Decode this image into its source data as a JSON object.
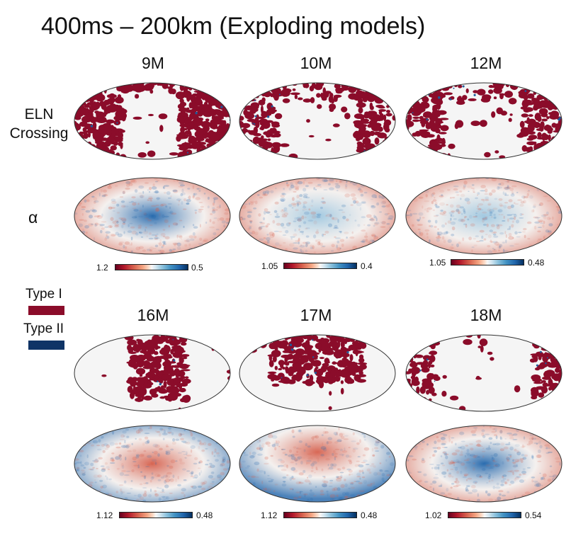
{
  "title": "400ms – 200km (Exploding models)",
  "row_labels": {
    "eln_line1": "ELN",
    "eln_line2": "Crossing",
    "alpha": "α"
  },
  "legend": {
    "type1_label": "Type I",
    "type1_color": "#8b0c2a",
    "type2_label": "Type II",
    "type2_color": "#0f3466"
  },
  "colors": {
    "crossing_red": "#8b0c2a",
    "crossing_blue": "#1f5a9a",
    "map_background": "#f5f5f5",
    "alpha_red": "#d6604d",
    "alpha_blue": "#2166ac"
  },
  "models": [
    {
      "label": "9M",
      "crossing_pattern": "red-all-but-center",
      "alpha_pattern": "blue-center",
      "colorbar_min": "1.2",
      "colorbar_max": "0.5"
    },
    {
      "label": "10M",
      "crossing_pattern": "red-edges",
      "alpha_pattern": "red-edges",
      "colorbar_min": "1.05",
      "colorbar_max": "0.4"
    },
    {
      "label": "12M",
      "crossing_pattern": "red-edges",
      "alpha_pattern": "red-edges",
      "colorbar_min": "1.05",
      "colorbar_max": "0.48"
    },
    {
      "label": "16M",
      "crossing_pattern": "red-center",
      "alpha_pattern": "red-center",
      "colorbar_min": "1.12",
      "colorbar_max": "0.48"
    },
    {
      "label": "17M",
      "crossing_pattern": "red-top",
      "alpha_pattern": "red-top",
      "colorbar_min": "1.12",
      "colorbar_max": "0.48"
    },
    {
      "label": "18M",
      "crossing_pattern": "red-sides",
      "alpha_pattern": "blue-center",
      "colorbar_min": "1.02",
      "colorbar_max": "0.54"
    }
  ]
}
